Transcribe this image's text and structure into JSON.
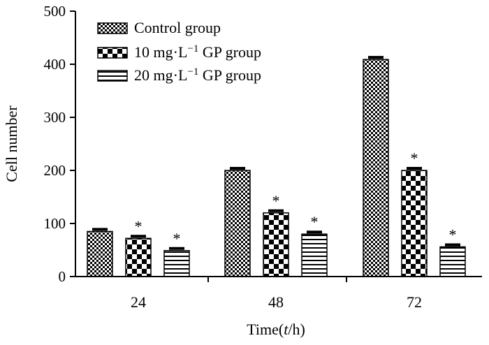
{
  "chart_data": {
    "type": "bar",
    "title": "",
    "xlabel_parts": [
      "Time(",
      "t",
      "/h)"
    ],
    "ylabel": "Cell number",
    "ylim": [
      0,
      500
    ],
    "yticks": [
      0,
      100,
      200,
      300,
      400,
      500
    ],
    "categories": [
      "24",
      "48",
      "72"
    ],
    "series": [
      {
        "name": "Control group",
        "label_parts": [
          "Control group"
        ],
        "pattern": "checker-fine",
        "values": [
          85,
          200,
          409
        ],
        "significant": [
          false,
          false,
          false
        ]
      },
      {
        "name": "10 mg·L−1 GP group",
        "label_parts": [
          "10 mg·L",
          "−1",
          " GP group"
        ],
        "pattern": "checker-coarse",
        "values": [
          72,
          120,
          200
        ],
        "significant": [
          true,
          true,
          true
        ]
      },
      {
        "name": "20 mg·L−1 GP group",
        "label_parts": [
          "20 mg·L",
          "−1",
          " GP group"
        ],
        "pattern": "horizontal-stripes",
        "values": [
          49,
          80,
          56
        ],
        "significant": [
          true,
          true,
          true
        ]
      }
    ],
    "significance_marker": "*",
    "legend_position": "top-left",
    "grid": false
  }
}
